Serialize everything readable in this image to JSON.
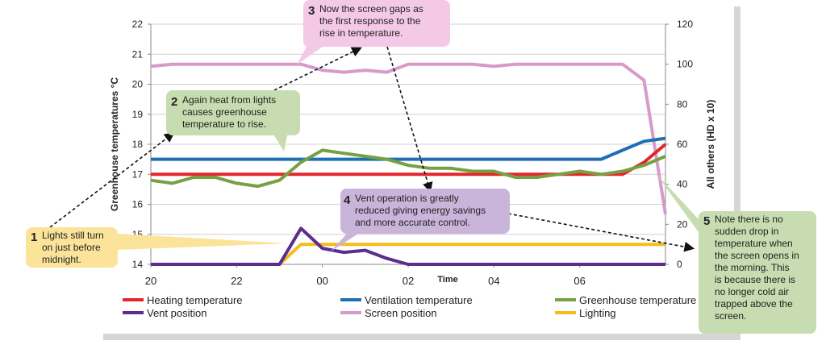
{
  "chart_data": {
    "type": "line",
    "x_label": "Time",
    "y_label": "Greenhouse  temperatures   °C",
    "y2_label": "All others (HD x 10)",
    "x": [
      20,
      20.5,
      21,
      21.5,
      22,
      22.5,
      23,
      23.5,
      24,
      24.5,
      25,
      25.5,
      26,
      26.5,
      27,
      27.5,
      28,
      28.5,
      29,
      29.5,
      30,
      30.5,
      31,
      31.5,
      32
    ],
    "xlim": [
      20,
      32
    ],
    "xticks": [
      20,
      22,
      {
        "value": 24,
        "label": "00"
      },
      {
        "value": 26,
        "label": "02"
      },
      {
        "value": 28,
        "label": "04"
      },
      {
        "value": 30,
        "label": "06"
      }
    ],
    "ylim": [
      14,
      22
    ],
    "yticks": [
      14,
      15,
      16,
      17,
      18,
      19,
      20,
      21,
      22
    ],
    "y2lim": [
      0,
      120
    ],
    "y2ticks": [
      0,
      20,
      40,
      60,
      80,
      100,
      120
    ],
    "grid": true,
    "series": [
      {
        "name": "Heating temperature",
        "color": "#e3262b",
        "values": [
          17,
          17,
          17,
          17,
          17,
          17,
          17,
          17,
          17,
          17,
          17,
          17,
          17,
          17,
          17,
          17,
          17,
          17,
          17,
          17,
          17,
          17,
          17,
          17.4,
          18
        ]
      },
      {
        "name": "Ventilation temperature",
        "color": "#1f6fb5",
        "values": [
          17.5,
          17.5,
          17.5,
          17.5,
          17.5,
          17.5,
          17.5,
          17.5,
          17.5,
          17.5,
          17.5,
          17.5,
          17.5,
          17.5,
          17.5,
          17.5,
          17.5,
          17.5,
          17.5,
          17.5,
          17.5,
          17.5,
          17.8,
          18.1,
          18.2
        ]
      },
      {
        "name": "Greenhouse temperature",
        "color": "#77a043",
        "values": [
          16.8,
          16.7,
          16.9,
          16.9,
          16.7,
          16.6,
          16.8,
          17.4,
          17.8,
          17.7,
          17.6,
          17.5,
          17.3,
          17.2,
          17.2,
          17.1,
          17.1,
          16.9,
          16.9,
          17.0,
          17.1,
          17.0,
          17.1,
          17.3,
          17.6
        ]
      },
      {
        "name": "Vent position",
        "color": "#5b2d8c",
        "axis": "y2",
        "values": [
          0,
          0,
          0,
          0,
          0,
          0,
          0,
          18,
          8,
          6,
          7,
          3,
          0,
          0,
          0,
          0,
          0,
          0,
          0,
          0,
          0,
          0,
          0,
          0,
          0
        ]
      },
      {
        "name": "Screen position",
        "color": "#d89ac8",
        "axis": "y2",
        "values": [
          99,
          100,
          100,
          100,
          100,
          100,
          100,
          100,
          97,
          96,
          97,
          96,
          100,
          100,
          100,
          100,
          99,
          100,
          100,
          100,
          100,
          100,
          100,
          92,
          25
        ]
      },
      {
        "name": "Lighting",
        "color": "#f6bc1a",
        "axis": "y2",
        "values": [
          0,
          0,
          0,
          0,
          0,
          0,
          0,
          10,
          10,
          10,
          10,
          10,
          10,
          10,
          10,
          10,
          10,
          10,
          10,
          10,
          10,
          10,
          10,
          10,
          10
        ]
      }
    ]
  },
  "annotations": [
    {
      "number": "1",
      "lines": [
        "Lights still turn",
        "on just before",
        "midnight."
      ]
    },
    {
      "number": "2",
      "lines": [
        "Again heat from lights",
        "causes greenhouse",
        "temperature to rise."
      ]
    },
    {
      "number": "3",
      "lines": [
        "Now the screen gaps as",
        "the first response to the",
        "rise in temperature."
      ]
    },
    {
      "number": "4",
      "lines": [
        "Vent operation is greatly",
        "reduced giving energy savings",
        "and more accurate control."
      ]
    },
    {
      "number": "5",
      "lines": [
        "Note there is no",
        "sudden drop in",
        "temperature when",
        "the screen opens in",
        "the morning. This",
        "is because there is",
        "no longer cold air",
        "trapped above the",
        "screen."
      ]
    }
  ]
}
